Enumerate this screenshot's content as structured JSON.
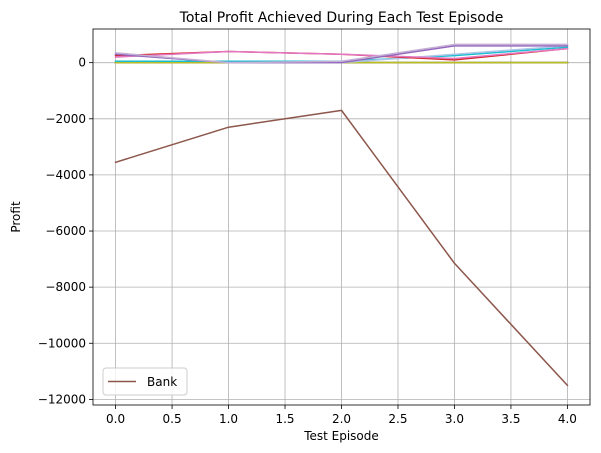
{
  "chart_data": {
    "type": "line",
    "title": "Total Profit Achieved During Each Test Episode",
    "xlabel": "Test Episode",
    "ylabel": "Profit",
    "xlim": [
      -0.2,
      4.2
    ],
    "ylim": [
      -12200,
      1200
    ],
    "xticks": [
      0.0,
      0.5,
      1.0,
      1.5,
      2.0,
      2.5,
      3.0,
      3.5,
      4.0
    ],
    "xtick_labels": [
      "0.0",
      "0.5",
      "1.0",
      "1.5",
      "2.0",
      "2.5",
      "3.0",
      "3.5",
      "4.0"
    ],
    "yticks": [
      0,
      -2000,
      -4000,
      -6000,
      -8000,
      -10000,
      -12000
    ],
    "ytick_labels": [
      "0",
      "−2000",
      "−4000",
      "−6000",
      "−8000",
      "−10000",
      "−12000"
    ],
    "grid": true,
    "legend": {
      "placement": "lower-left",
      "entries": [
        "Bank"
      ]
    },
    "x": [
      0,
      1,
      2,
      3,
      4
    ],
    "series": [
      {
        "name": "Bank",
        "color": "#8c564b",
        "values": [
          -3550,
          -2300,
          -1700,
          -7150,
          -11500
        ],
        "legend": true
      },
      {
        "color": "#1f77b4",
        "values": [
          0,
          0,
          0,
          0,
          0
        ]
      },
      {
        "color": "#ff7f0e",
        "values": [
          0,
          0,
          0,
          0,
          0
        ]
      },
      {
        "color": "#2ca02c",
        "values": [
          0,
          0,
          0,
          0,
          0
        ]
      },
      {
        "color": "#7f7f7f",
        "values": [
          0,
          0,
          0,
          0,
          0
        ]
      },
      {
        "color": "#bcbd22",
        "values": [
          0,
          0,
          0,
          0,
          0
        ]
      },
      {
        "color": "#17becf",
        "values": [
          50,
          50,
          50,
          250,
          550
        ]
      },
      {
        "color": "#aec7e8",
        "values": [
          300,
          0,
          0,
          300,
          600
        ]
      },
      {
        "color": "#d62728",
        "values": [
          250,
          400,
          300,
          100,
          500
        ]
      },
      {
        "color": "#e377c2",
        "values": [
          200,
          400,
          300,
          150,
          500
        ]
      },
      {
        "color": "#9467bd",
        "values": [
          300,
          0,
          0,
          600,
          600
        ]
      },
      {
        "color": "#c5b0d5",
        "values": [
          350,
          0,
          50,
          650,
          650
        ]
      }
    ]
  }
}
